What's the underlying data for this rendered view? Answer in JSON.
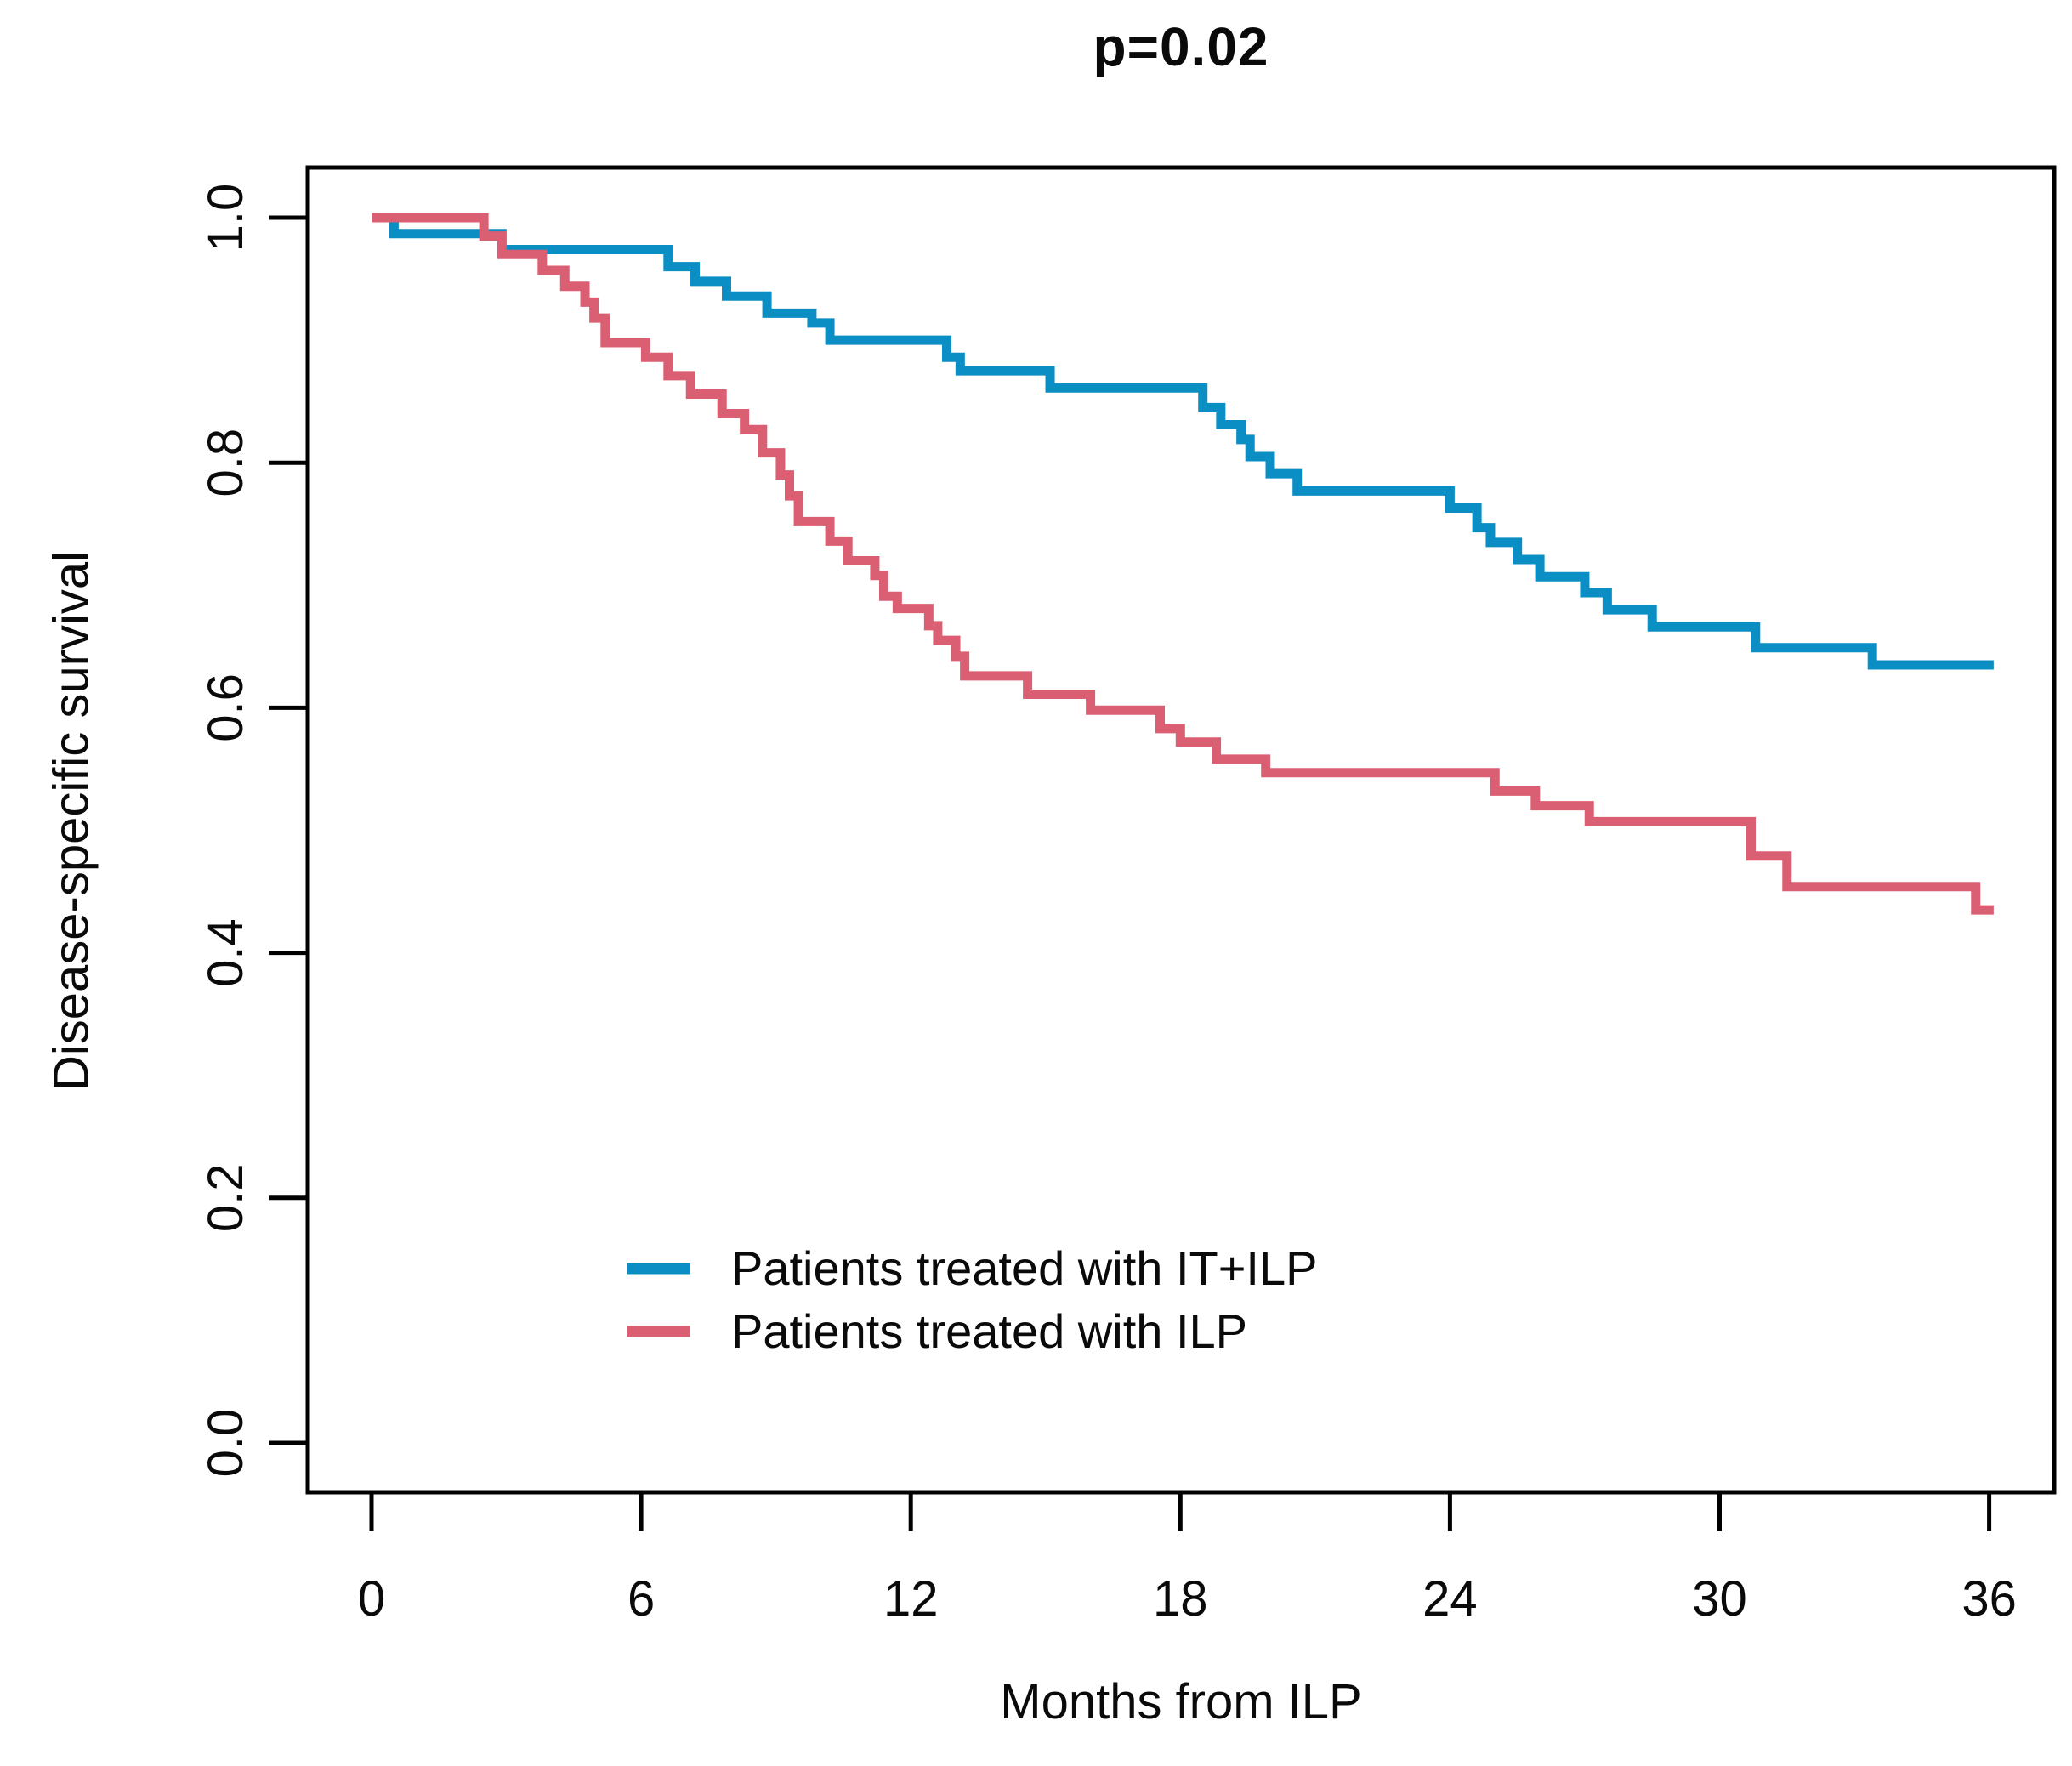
{
  "title": "p=0.02",
  "axes": {
    "x_label": "Months from ILP",
    "y_label": "Disease-specific survival"
  },
  "legend": {
    "items": [
      {
        "label": "Patients treated with IT+ILP",
        "color": "#0b8ec4"
      },
      {
        "label": "Patients treated with ILP",
        "color": "#db5f72"
      }
    ]
  },
  "chart_data": {
    "type": "line",
    "subtype": "kaplan-meier-step",
    "title": "p=0.02",
    "xlabel": "Months from ILP",
    "ylabel": "Disease-specific survival",
    "xlim": [
      0,
      36
    ],
    "ylim": [
      0.0,
      1.0
    ],
    "x_ticks": [
      0,
      6,
      12,
      18,
      24,
      30,
      36
    ],
    "y_ticks": [
      1.0,
      0.8,
      0.6,
      0.4,
      0.2,
      0.0
    ],
    "y_tick_labels": [
      "1.0",
      "0.8",
      "0.6",
      "0.4",
      "0.2",
      "0.0"
    ],
    "grid": false,
    "legend_position": "inside-bottom-center",
    "series": [
      {
        "name": "Patients treated with IT+ILP",
        "color": "#0b8ec4",
        "end_time": 36.1,
        "points": [
          [
            0,
            1.0
          ],
          [
            0.5,
            0.987
          ],
          [
            2.9,
            0.974
          ],
          [
            6.6,
            0.96
          ],
          [
            7.2,
            0.948
          ],
          [
            7.9,
            0.936
          ],
          [
            8.8,
            0.922
          ],
          [
            9.8,
            0.914
          ],
          [
            10.2,
            0.9
          ],
          [
            12.8,
            0.886
          ],
          [
            13.1,
            0.875
          ],
          [
            15.1,
            0.861
          ],
          [
            18.5,
            0.845
          ],
          [
            18.9,
            0.831
          ],
          [
            19.35,
            0.819
          ],
          [
            19.55,
            0.805
          ],
          [
            20.0,
            0.791
          ],
          [
            20.6,
            0.777
          ],
          [
            24.0,
            0.763
          ],
          [
            24.6,
            0.747
          ],
          [
            24.9,
            0.735
          ],
          [
            25.5,
            0.721
          ],
          [
            26.0,
            0.707
          ],
          [
            27.0,
            0.694
          ],
          [
            27.5,
            0.68
          ],
          [
            28.5,
            0.666
          ],
          [
            30.8,
            0.649
          ],
          [
            33.4,
            0.635
          ]
        ]
      },
      {
        "name": "Patients treated with ILP",
        "color": "#db5f72",
        "end_time": 36.1,
        "points": [
          [
            0,
            1.0
          ],
          [
            2.5,
            0.985
          ],
          [
            2.9,
            0.97
          ],
          [
            3.8,
            0.957
          ],
          [
            4.3,
            0.944
          ],
          [
            4.75,
            0.931
          ],
          [
            4.95,
            0.918
          ],
          [
            5.2,
            0.898
          ],
          [
            6.1,
            0.886
          ],
          [
            6.6,
            0.871
          ],
          [
            7.1,
            0.856
          ],
          [
            7.8,
            0.84
          ],
          [
            8.3,
            0.827
          ],
          [
            8.7,
            0.808
          ],
          [
            9.1,
            0.79
          ],
          [
            9.3,
            0.773
          ],
          [
            9.5,
            0.752
          ],
          [
            10.2,
            0.736
          ],
          [
            10.6,
            0.72
          ],
          [
            11.2,
            0.708
          ],
          [
            11.4,
            0.691
          ],
          [
            11.7,
            0.681
          ],
          [
            12.4,
            0.667
          ],
          [
            12.6,
            0.655
          ],
          [
            13.0,
            0.642
          ],
          [
            13.2,
            0.626
          ],
          [
            14.6,
            0.611
          ],
          [
            16.0,
            0.598
          ],
          [
            17.55,
            0.583
          ],
          [
            18.0,
            0.572
          ],
          [
            18.8,
            0.558
          ],
          [
            19.9,
            0.547
          ],
          [
            25.0,
            0.532
          ],
          [
            25.9,
            0.52
          ],
          [
            27.1,
            0.507
          ],
          [
            30.7,
            0.479
          ],
          [
            31.5,
            0.454
          ],
          [
            35.7,
            0.435
          ]
        ]
      }
    ]
  }
}
